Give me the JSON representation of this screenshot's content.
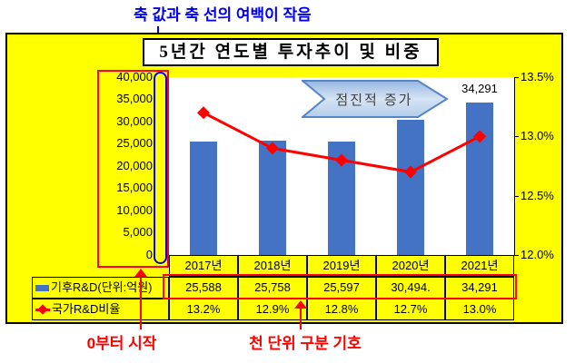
{
  "title": "5년간 연도별 투자추이 및 비중",
  "annotations": {
    "top": "축 값과 축 선의 여백이 작음",
    "bottom_left": "0부터 시작",
    "bottom_mid": "천 단위 구분 기호",
    "inside_arrow": "점진적 증가",
    "bar_data_label": "34,291"
  },
  "chart_data": {
    "type": "bar",
    "subtype": "bar+line combo with data table",
    "title": "5년간 연도별 투자추이 및 비중",
    "categories": [
      "2017년",
      "2018년",
      "2019년",
      "2020년",
      "2021년"
    ],
    "series": [
      {
        "name": "기후R&D(단위:억원)",
        "type": "bar",
        "axis": "left",
        "values": [
          25588,
          25758,
          25597,
          30494,
          34291
        ],
        "color": "#4472c4"
      },
      {
        "name": "국가R&D비율",
        "type": "line",
        "axis": "right",
        "values": [
          13.2,
          12.9,
          12.8,
          12.7,
          13.0
        ],
        "color": "#ff0000",
        "marker": "diamond"
      }
    ],
    "y_left": {
      "min": 0,
      "max": 40000,
      "ticks": [
        "40,000",
        "35,000",
        "30,000",
        "25,000",
        "20,000",
        "15,000",
        "10,000",
        "5,000",
        "0"
      ]
    },
    "y_right": {
      "min": 12.0,
      "max": 13.5,
      "ticks": [
        "13.5%",
        "13.0%",
        "12.5%",
        "12.0%"
      ]
    },
    "grid": false,
    "legend_position": "bottom-data-table",
    "plot_bg": "#ffffff",
    "chart_bg": "#ffff00"
  },
  "table": {
    "years": [
      "2017년",
      "2018년",
      "2019년",
      "2020년",
      "2021년"
    ],
    "rows": [
      {
        "label": "기후R&D(단위:억원)",
        "values": [
          "25,588",
          "25,758",
          "25,597",
          "30,494.",
          "34,291"
        ]
      },
      {
        "label": "국가R&D비율",
        "values": [
          "13.2%",
          "12.9%",
          "12.8%",
          "12.7%",
          "13.0%"
        ]
      }
    ]
  },
  "colors": {
    "chart_background": "#ffff00",
    "plot_background": "#ffffff",
    "bar": "#4472c4",
    "line": "#ff0000",
    "annotation_blue": "#0000ee",
    "annotation_red": "#ff0000",
    "arrow_fill_light": "#d6e4f4",
    "arrow_fill_dark": "#96b7e0",
    "arrow_stroke": "#5585c9",
    "border": "#000000"
  }
}
